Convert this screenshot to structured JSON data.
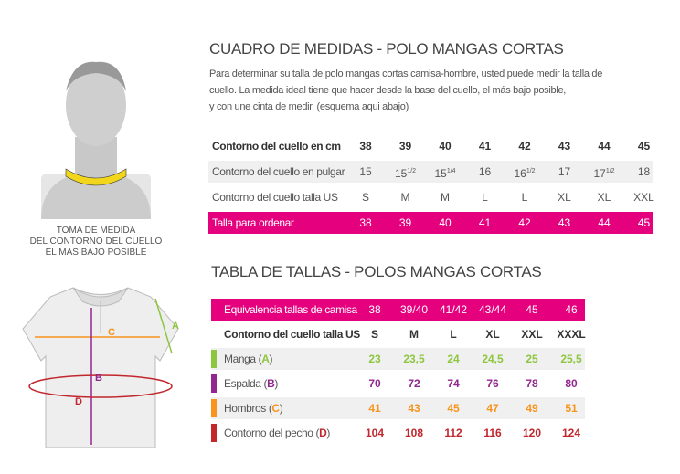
{
  "header": {
    "title": "CUADRO DE MEDIDAS - POLO MANGAS CORTAS",
    "lines": [
      "Para determinar su talla de polo mangas cortas camisa-hombre, usted puede medir la talla de",
      "cuello. La medida ideal tiene que hacer desde la base del cuello, el más bajo posible,",
      "y con une cinta de medir. (esquema aqui abajo)"
    ]
  },
  "neck_caption": [
    "TOMA DE MEDIDA",
    "DEL CONTORNO DEL CUELLO",
    "EL MAS BAJO POSIBLE"
  ],
  "neck_table": {
    "rows": [
      {
        "label": "Contorno del cuello  en cm",
        "cells": [
          "38",
          "39",
          "40",
          "41",
          "42",
          "43",
          "44",
          "45"
        ]
      },
      {
        "label": "Contorno del  cuello en pulgar",
        "cells": [
          {
            "base": "15"
          },
          {
            "base": "15",
            "sup": "1/2"
          },
          {
            "base": "15",
            "sup": "1/4"
          },
          {
            "base": "16"
          },
          {
            "base": "16",
            "sup": "1/2"
          },
          {
            "base": "17"
          },
          {
            "base": "17",
            "sup": "1/2"
          },
          {
            "base": "18"
          }
        ]
      },
      {
        "label": "Contorno del  cuello talla US",
        "cells": [
          "S",
          "M",
          "M",
          "L",
          "L",
          "XL",
          "XL",
          "XXL"
        ]
      },
      {
        "label": "Talla para ordenar",
        "cells": [
          "38",
          "39",
          "40",
          "41",
          "42",
          "43",
          "44",
          "45"
        ]
      }
    ]
  },
  "size_table": {
    "title": "TABLA DE TALLAS - POLOS MANGAS CORTAS",
    "header": {
      "label": "Equivalencia tallas de camisa",
      "cells": [
        "38",
        "39/40",
        "41/42",
        "43/44",
        "45",
        "46"
      ]
    },
    "us_row": {
      "label": "Contorno del cuello talla US",
      "cells": [
        "S",
        "M",
        "L",
        "XL",
        "XXL",
        "XXXL"
      ]
    },
    "rows": [
      {
        "name": "Manga",
        "letter": "A",
        "color": "#8dc63f",
        "cells": [
          "23",
          "23,5",
          "24",
          "24,5",
          "25",
          "25,5"
        ]
      },
      {
        "name": "Espalda",
        "letter": "B",
        "color": "#92278f",
        "cells": [
          "70",
          "72",
          "74",
          "76",
          "78",
          "80"
        ]
      },
      {
        "name": "Hombros",
        "letter": "C",
        "color": "#f7941d",
        "cells": [
          "41",
          "43",
          "45",
          "47",
          "49",
          "51"
        ]
      },
      {
        "name": "Contorno del pecho",
        "letter": "D",
        "color": "#c1272d",
        "cells": [
          "104",
          "108",
          "112",
          "116",
          "120",
          "124"
        ]
      }
    ]
  }
}
